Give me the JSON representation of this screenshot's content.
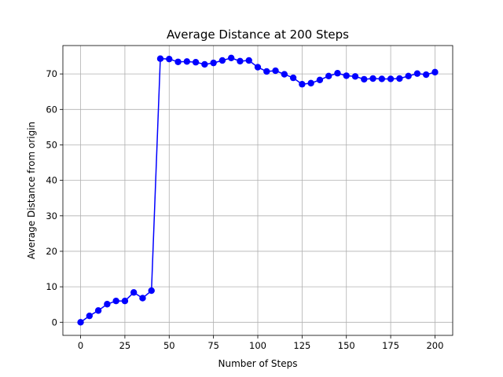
{
  "chart_data": {
    "type": "line",
    "title": "Average Distance at 200 Steps",
    "xlabel": "Number of Steps",
    "ylabel": "Average Distance from origin",
    "xlim": [
      -10,
      210
    ],
    "ylim": [
      -3.7,
      78
    ],
    "xticks": [
      0,
      25,
      50,
      75,
      100,
      125,
      150,
      175,
      200
    ],
    "yticks": [
      0,
      10,
      20,
      30,
      40,
      50,
      60,
      70
    ],
    "grid": true,
    "series": [
      {
        "color": "#0000ff",
        "marker": "circle",
        "x": [
          0,
          5,
          10,
          15,
          20,
          25,
          30,
          35,
          40,
          45,
          50,
          55,
          60,
          65,
          70,
          75,
          80,
          85,
          90,
          95,
          100,
          105,
          110,
          115,
          120,
          125,
          130,
          135,
          140,
          145,
          150,
          155,
          160,
          165,
          170,
          175,
          180,
          185,
          190,
          195,
          200
        ],
        "y": [
          0,
          1.8,
          3.3,
          5.1,
          6.0,
          6.0,
          8.4,
          6.8,
          8.9,
          74.3,
          74.2,
          73.4,
          73.5,
          73.3,
          72.7,
          73.1,
          73.8,
          74.5,
          73.6,
          73.8,
          71.9,
          70.7,
          70.9,
          69.9,
          68.9,
          67.1,
          67.4,
          68.3,
          69.4,
          70.2,
          69.5,
          69.3,
          68.5,
          68.7,
          68.6,
          68.6,
          68.7,
          69.4,
          70.1,
          69.8,
          70.5
        ]
      }
    ]
  }
}
